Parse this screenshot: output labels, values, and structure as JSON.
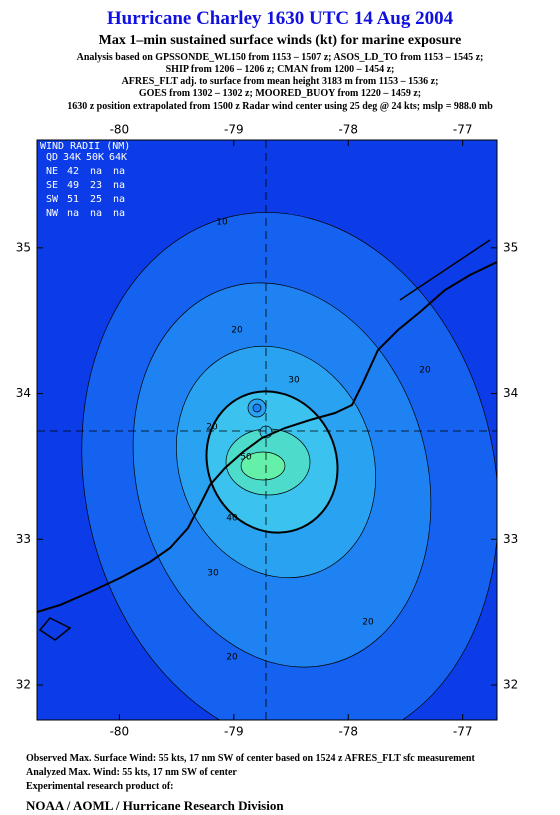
{
  "header": {
    "title": "Hurricane Charley 1630 UTC 14 Aug 2004",
    "subtitle": "Max 1–min sustained surface winds (kt) for marine exposure",
    "analysis": [
      "Analysis based on  GPSSONDE_WL150 from 1153 – 1507 z;  ASOS_LD_TO from 1153 – 1545 z;",
      "SHIP from 1206 – 1206 z;  CMAN from 1200 – 1454 z;",
      "AFRES_FLT adj. to surface from mean height 3183 m from 1153 – 1536 z;",
      "GOES from 1302 – 1302 z;  MOORED_BUOY from 1220 – 1459 z;",
      "1630 z position extrapolated from 1500 z Radar wind center using 25 deg @ 24 kts; mslp = 988.0 mb"
    ]
  },
  "map": {
    "lon_range": [
      -80.72,
      -76.7
    ],
    "lat_range": [
      31.76,
      35.74
    ],
    "lon_ticks": [
      -80,
      -79,
      -78,
      -77
    ],
    "lat_ticks": [
      35,
      34,
      33,
      32
    ],
    "contour_labels": [
      10,
      20,
      30,
      40,
      50
    ],
    "wind_radii": {
      "title": "WIND RADII (NM)",
      "header": [
        "QD",
        "34K",
        "50K",
        "64K"
      ],
      "rows": [
        [
          "NE",
          42,
          "na",
          "na"
        ],
        [
          "SE",
          49,
          23,
          "na"
        ],
        [
          "SW",
          51,
          25,
          "na"
        ],
        [
          "NW",
          "na",
          "na",
          "na"
        ]
      ]
    }
  },
  "footer": {
    "lines": [
      "Observed Max. Surface Wind: 55 kts, 17 nm SW of center based on 1524 z AFRES_FLT sfc measurement",
      "Analyzed Max. Wind: 55 kts, 17 nm SW of center",
      "Experimental research product of:"
    ],
    "org": "NOAA / AOML / Hurricane Research Division"
  }
}
